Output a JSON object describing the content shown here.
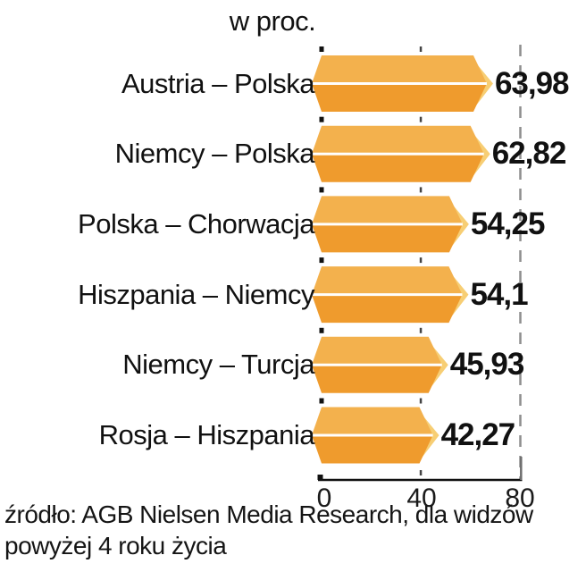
{
  "chart_data": {
    "type": "bar",
    "orientation": "horizontal",
    "title": "w proc.",
    "categories": [
      "Austria – Polska",
      "Niemcy – Polska",
      "Polska – Chorwacja",
      "Hiszpania – Niemcy",
      "Niemcy – Turcja",
      "Rosja – Hiszpania"
    ],
    "values": [
      63.98,
      62.82,
      54.25,
      54.1,
      45.93,
      42.27
    ],
    "value_labels": [
      "63,98",
      "62,82",
      "54,25",
      "54,1",
      "45,93",
      "42,27"
    ],
    "xlim": [
      0,
      80
    ],
    "x_ticks": [
      0,
      40,
      80
    ],
    "x_tick_labels": [
      "0",
      "40",
      "80"
    ],
    "grid": "vertical-dashed",
    "legend": "none",
    "source_lines": [
      "źródło: AGB Nielsen Media Research, dla widzów",
      "powyżej 4 roku życia"
    ]
  },
  "colors": {
    "bar_top_face": "#F3B14D",
    "bar_front_face": "#EF9B2D",
    "bar_end_cap": "#F7CE74",
    "bar_divider": "#FFFFFF",
    "grid_dash_80": "#8E8E8E",
    "gap_tick_zero": "#111111",
    "gap_tick_forty": "#444444",
    "axis_line": "#111111",
    "text": "#111111",
    "background": "#FFFFFF"
  }
}
